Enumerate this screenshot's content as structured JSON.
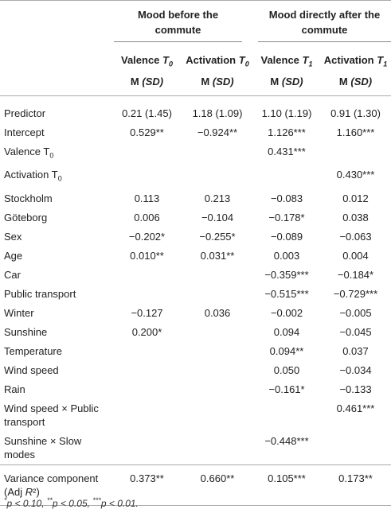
{
  "header": {
    "group1": "Mood before the commute",
    "group2": "Mood directly after the commute",
    "cols": [
      {
        "name": "Valence",
        "sym": "T",
        "sub": "0",
        "stat": "M (SD)"
      },
      {
        "name": "Activation",
        "sym": "T",
        "sub": "0",
        "stat": "M (SD)"
      },
      {
        "name": "Valence",
        "sym": "T",
        "sub": "1",
        "stat": "M (SD)"
      },
      {
        "name": "Activation",
        "sym": "T",
        "sub": "1",
        "stat": "M (SD)"
      }
    ]
  },
  "rows": [
    {
      "label": "Predictor",
      "v": [
        "0.21 (1.45)",
        "1.18 (1.09)",
        "1.10 (1.19)",
        "0.91 (1.30)"
      ]
    },
    {
      "label": "Intercept",
      "v": [
        "0.529**",
        "−0.924**",
        "1.126***",
        "1.160***"
      ]
    },
    {
      "label": "Valence T",
      "label_sub": "0",
      "v": [
        "",
        "",
        "0.431***",
        ""
      ]
    },
    {
      "label": "Activation T",
      "label_sub": "0",
      "v": [
        "",
        "",
        "",
        "0.430***"
      ]
    },
    {
      "label": "Stockholm",
      "v": [
        "0.113",
        "0.213",
        "−0.083",
        "0.012"
      ]
    },
    {
      "label": "Göteborg",
      "v": [
        "0.006",
        "−0.104",
        "−0.178*",
        "0.038"
      ]
    },
    {
      "label": "Sex",
      "v": [
        "−0.202*",
        "−0.255*",
        "−0.089",
        "−0.063"
      ]
    },
    {
      "label": "Age",
      "v": [
        "0.010**",
        "0.031**",
        "0.003",
        "0.004"
      ]
    },
    {
      "label": "Car",
      "v": [
        "",
        "",
        "−0.359***",
        "−0.184*"
      ]
    },
    {
      "label": "Public transport",
      "v": [
        "",
        "",
        "−0.515***",
        "−0.729***"
      ]
    },
    {
      "label": "Winter",
      "v": [
        "−0.127",
        "0.036",
        "−0.002",
        "−0.005"
      ]
    },
    {
      "label": "Sunshine",
      "v": [
        "0.200*",
        "",
        "0.094",
        "−0.045"
      ]
    },
    {
      "label": "Temperature",
      "v": [
        "",
        "",
        "0.094**",
        "0.037"
      ]
    },
    {
      "label": "Wind speed",
      "v": [
        "",
        "",
        "0.050",
        "−0.034"
      ]
    },
    {
      "label": "Rain",
      "v": [
        "",
        "",
        "−0.161*",
        "−0.133"
      ]
    },
    {
      "label": "Wind speed × Public transport",
      "v": [
        "",
        "",
        "",
        "0.461***"
      ]
    },
    {
      "label": "Sunshine × Slow modes",
      "v": [
        "",
        "",
        "−0.448***",
        ""
      ]
    },
    {
      "label": "Variance component (Adj R²)",
      "label_sym": "R",
      "v": [
        "0.373**",
        "0.660**",
        "0.105***",
        "0.173**"
      ]
    }
  ],
  "footnote": "*p < 0.10, **p < 0.05, ***p < 0.01."
}
